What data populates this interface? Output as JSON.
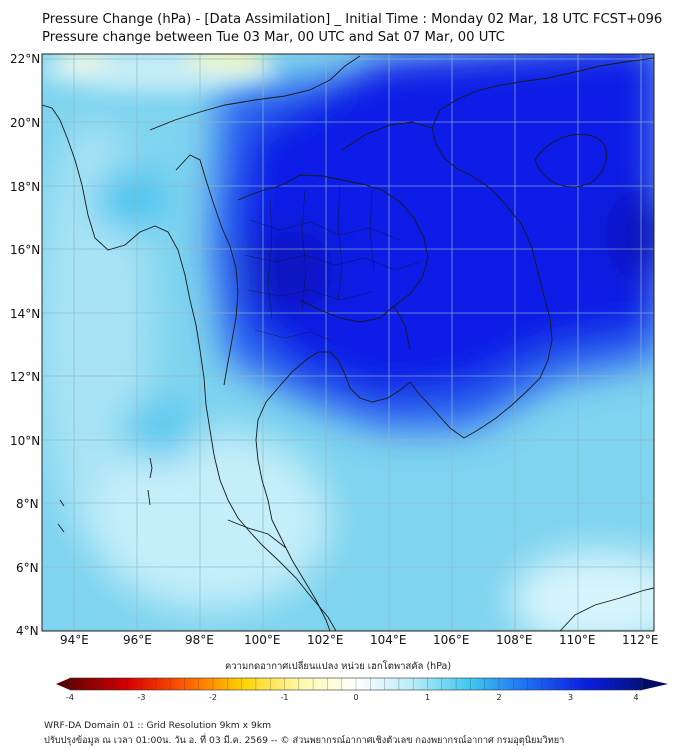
{
  "header": {
    "title_line1": "Pressure Change (hPa) - [Data Assimilation] _ Initial Time : Monday 02 Mar, 18 UTC FCST+096",
    "title_line2": "Pressure change between Tue 03 Mar, 00 UTC and Sat 07 Mar, 00 UTC"
  },
  "map": {
    "lat_labels": [
      "22°N",
      "20°N",
      "18°N",
      "16°N",
      "14°N",
      "12°N",
      "10°N",
      "8°N",
      "6°N",
      "4°N"
    ],
    "lon_labels": [
      "94°E",
      "96°E",
      "98°E",
      "100°E",
      "102°E",
      "104°E",
      "106°E",
      "108°E",
      "110°E",
      "112°E"
    ],
    "colors": {
      "ocean_base": "#7fd4ef",
      "strong_fall": "#0a1ee6",
      "moderate_fall": "#2a63f0",
      "weak_fall": "#b8ecf8",
      "rise_yellow": "#f7f07a",
      "grid": "#8fb8c8",
      "coastline": "#1a1a1a"
    }
  },
  "colorbar": {
    "title": "ความกดอากาศเปลี่ยนแปลง หน่วย เฮกโตพาสคัล (hPa)",
    "tick_labels": [
      "-4",
      "-3",
      "-2",
      "-1",
      "0",
      "1",
      "2",
      "3",
      "4"
    ],
    "stops": [
      "#6b0000",
      "#d40000",
      "#ff5a00",
      "#ffd200",
      "#fff7a8",
      "#ffffff",
      "#b8ecf8",
      "#3cc8f0",
      "#1e6ef0",
      "#0a1ee6",
      "#03127a"
    ]
  },
  "footer": {
    "line1": "WRF-DA Domain 01 :: Grid Resolution 9km x 9km",
    "line2": "ปรับปรุงข้อมูล ณ เวลา 01:00น. วัน อ. ที่ 03 มี.ค. 2569 -- © ส่วนพยากรณ์อากาศเชิงตัวเลข กองพยากรณ์อากาศ กรมอุตุนิยมวิทยา"
  }
}
